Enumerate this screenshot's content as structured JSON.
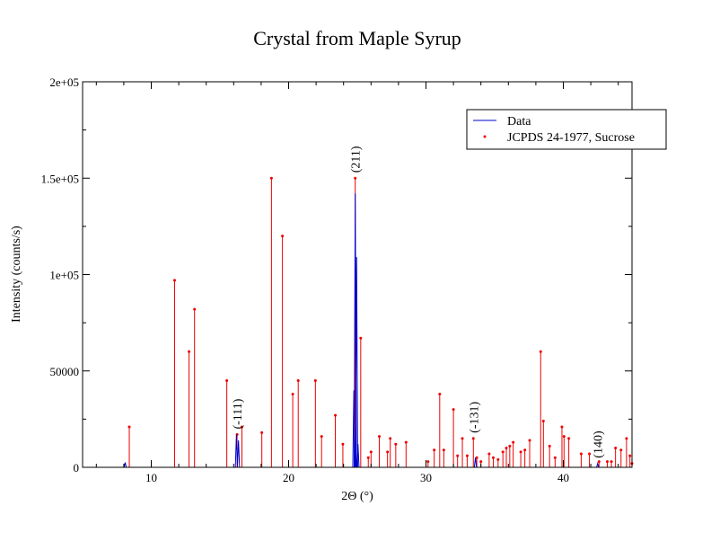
{
  "chart_data": {
    "type": "line",
    "title": "Crystal from Maple Syrup",
    "xlabel": "2Θ (°)",
    "ylabel": "Intensity (counts/s)",
    "xlim": [
      5,
      45
    ],
    "ylim": [
      0,
      200000
    ],
    "grid": false,
    "legend_position": "top-right",
    "x_ticks": [
      10,
      20,
      30,
      40
    ],
    "y_ticks": [
      {
        "value": 0,
        "label": "0"
      },
      {
        "value": 50000,
        "label": "50000"
      },
      {
        "value": 100000,
        "label": "1e+05"
      },
      {
        "value": 150000,
        "label": "1.5e+05"
      },
      {
        "value": 200000,
        "label": "2e+05"
      }
    ],
    "series": [
      {
        "name": "Data",
        "color": "#0000cc",
        "kind": "line",
        "peaks": [
          [
            8.1,
            2500
          ],
          [
            16.2,
            17000
          ],
          [
            16.35,
            14000
          ],
          [
            24.75,
            40000
          ],
          [
            24.85,
            142000
          ],
          [
            24.95,
            109000
          ],
          [
            25.05,
            12000
          ],
          [
            33.6,
            5000
          ],
          [
            42.5,
            2000
          ]
        ]
      },
      {
        "name": "JCPDS 24-1977, Sucrose",
        "color": "#ee0000",
        "kind": "stick",
        "points": [
          [
            8.4,
            21000
          ],
          [
            11.7,
            97000
          ],
          [
            12.75,
            60000
          ],
          [
            13.15,
            82000
          ],
          [
            15.5,
            45000
          ],
          [
            16.25,
            17000
          ],
          [
            16.6,
            21000
          ],
          [
            18.05,
            18000
          ],
          [
            18.75,
            150000
          ],
          [
            19.55,
            120000
          ],
          [
            20.3,
            38000
          ],
          [
            20.7,
            45000
          ],
          [
            21.95,
            45000
          ],
          [
            22.4,
            16000
          ],
          [
            23.4,
            27000
          ],
          [
            23.95,
            12000
          ],
          [
            24.85,
            150000
          ],
          [
            25.25,
            67000
          ],
          [
            25.8,
            5000
          ],
          [
            26.0,
            8000
          ],
          [
            26.6,
            16000
          ],
          [
            27.2,
            8000
          ],
          [
            27.4,
            15000
          ],
          [
            27.8,
            12000
          ],
          [
            28.55,
            13000
          ],
          [
            30.15,
            3000
          ],
          [
            30.6,
            9000
          ],
          [
            31.0,
            38000
          ],
          [
            31.3,
            9000
          ],
          [
            32.0,
            30000
          ],
          [
            32.3,
            6000
          ],
          [
            32.65,
            15000
          ],
          [
            33.0,
            6000
          ],
          [
            33.45,
            15000
          ],
          [
            33.7,
            5000
          ],
          [
            34.0,
            3000
          ],
          [
            34.6,
            7000
          ],
          [
            34.9,
            5000
          ],
          [
            35.25,
            4000
          ],
          [
            35.6,
            8000
          ],
          [
            35.85,
            10000
          ],
          [
            36.1,
            11000
          ],
          [
            36.35,
            13000
          ],
          [
            36.9,
            8000
          ],
          [
            37.2,
            9000
          ],
          [
            37.55,
            14000
          ],
          [
            38.35,
            60000
          ],
          [
            38.55,
            24000
          ],
          [
            39.0,
            11000
          ],
          [
            39.4,
            5000
          ],
          [
            39.9,
            21000
          ],
          [
            40.05,
            16000
          ],
          [
            40.4,
            15000
          ],
          [
            41.3,
            7000
          ],
          [
            41.9,
            7000
          ],
          [
            42.6,
            3000
          ],
          [
            43.2,
            3000
          ],
          [
            43.5,
            3000
          ],
          [
            43.8,
            10000
          ],
          [
            44.2,
            9000
          ],
          [
            44.6,
            15000
          ],
          [
            44.85,
            6000
          ],
          [
            45.0,
            2000
          ]
        ]
      }
    ],
    "annotations": [
      {
        "text": "(-111)",
        "x": 16.25,
        "y": 17000
      },
      {
        "text": "(211)",
        "x": 24.85,
        "y": 150000
      },
      {
        "text": "(-131)",
        "x": 33.45,
        "y": 15000
      },
      {
        "text": "(140)",
        "x": 42.5,
        "y": 2000
      }
    ]
  }
}
